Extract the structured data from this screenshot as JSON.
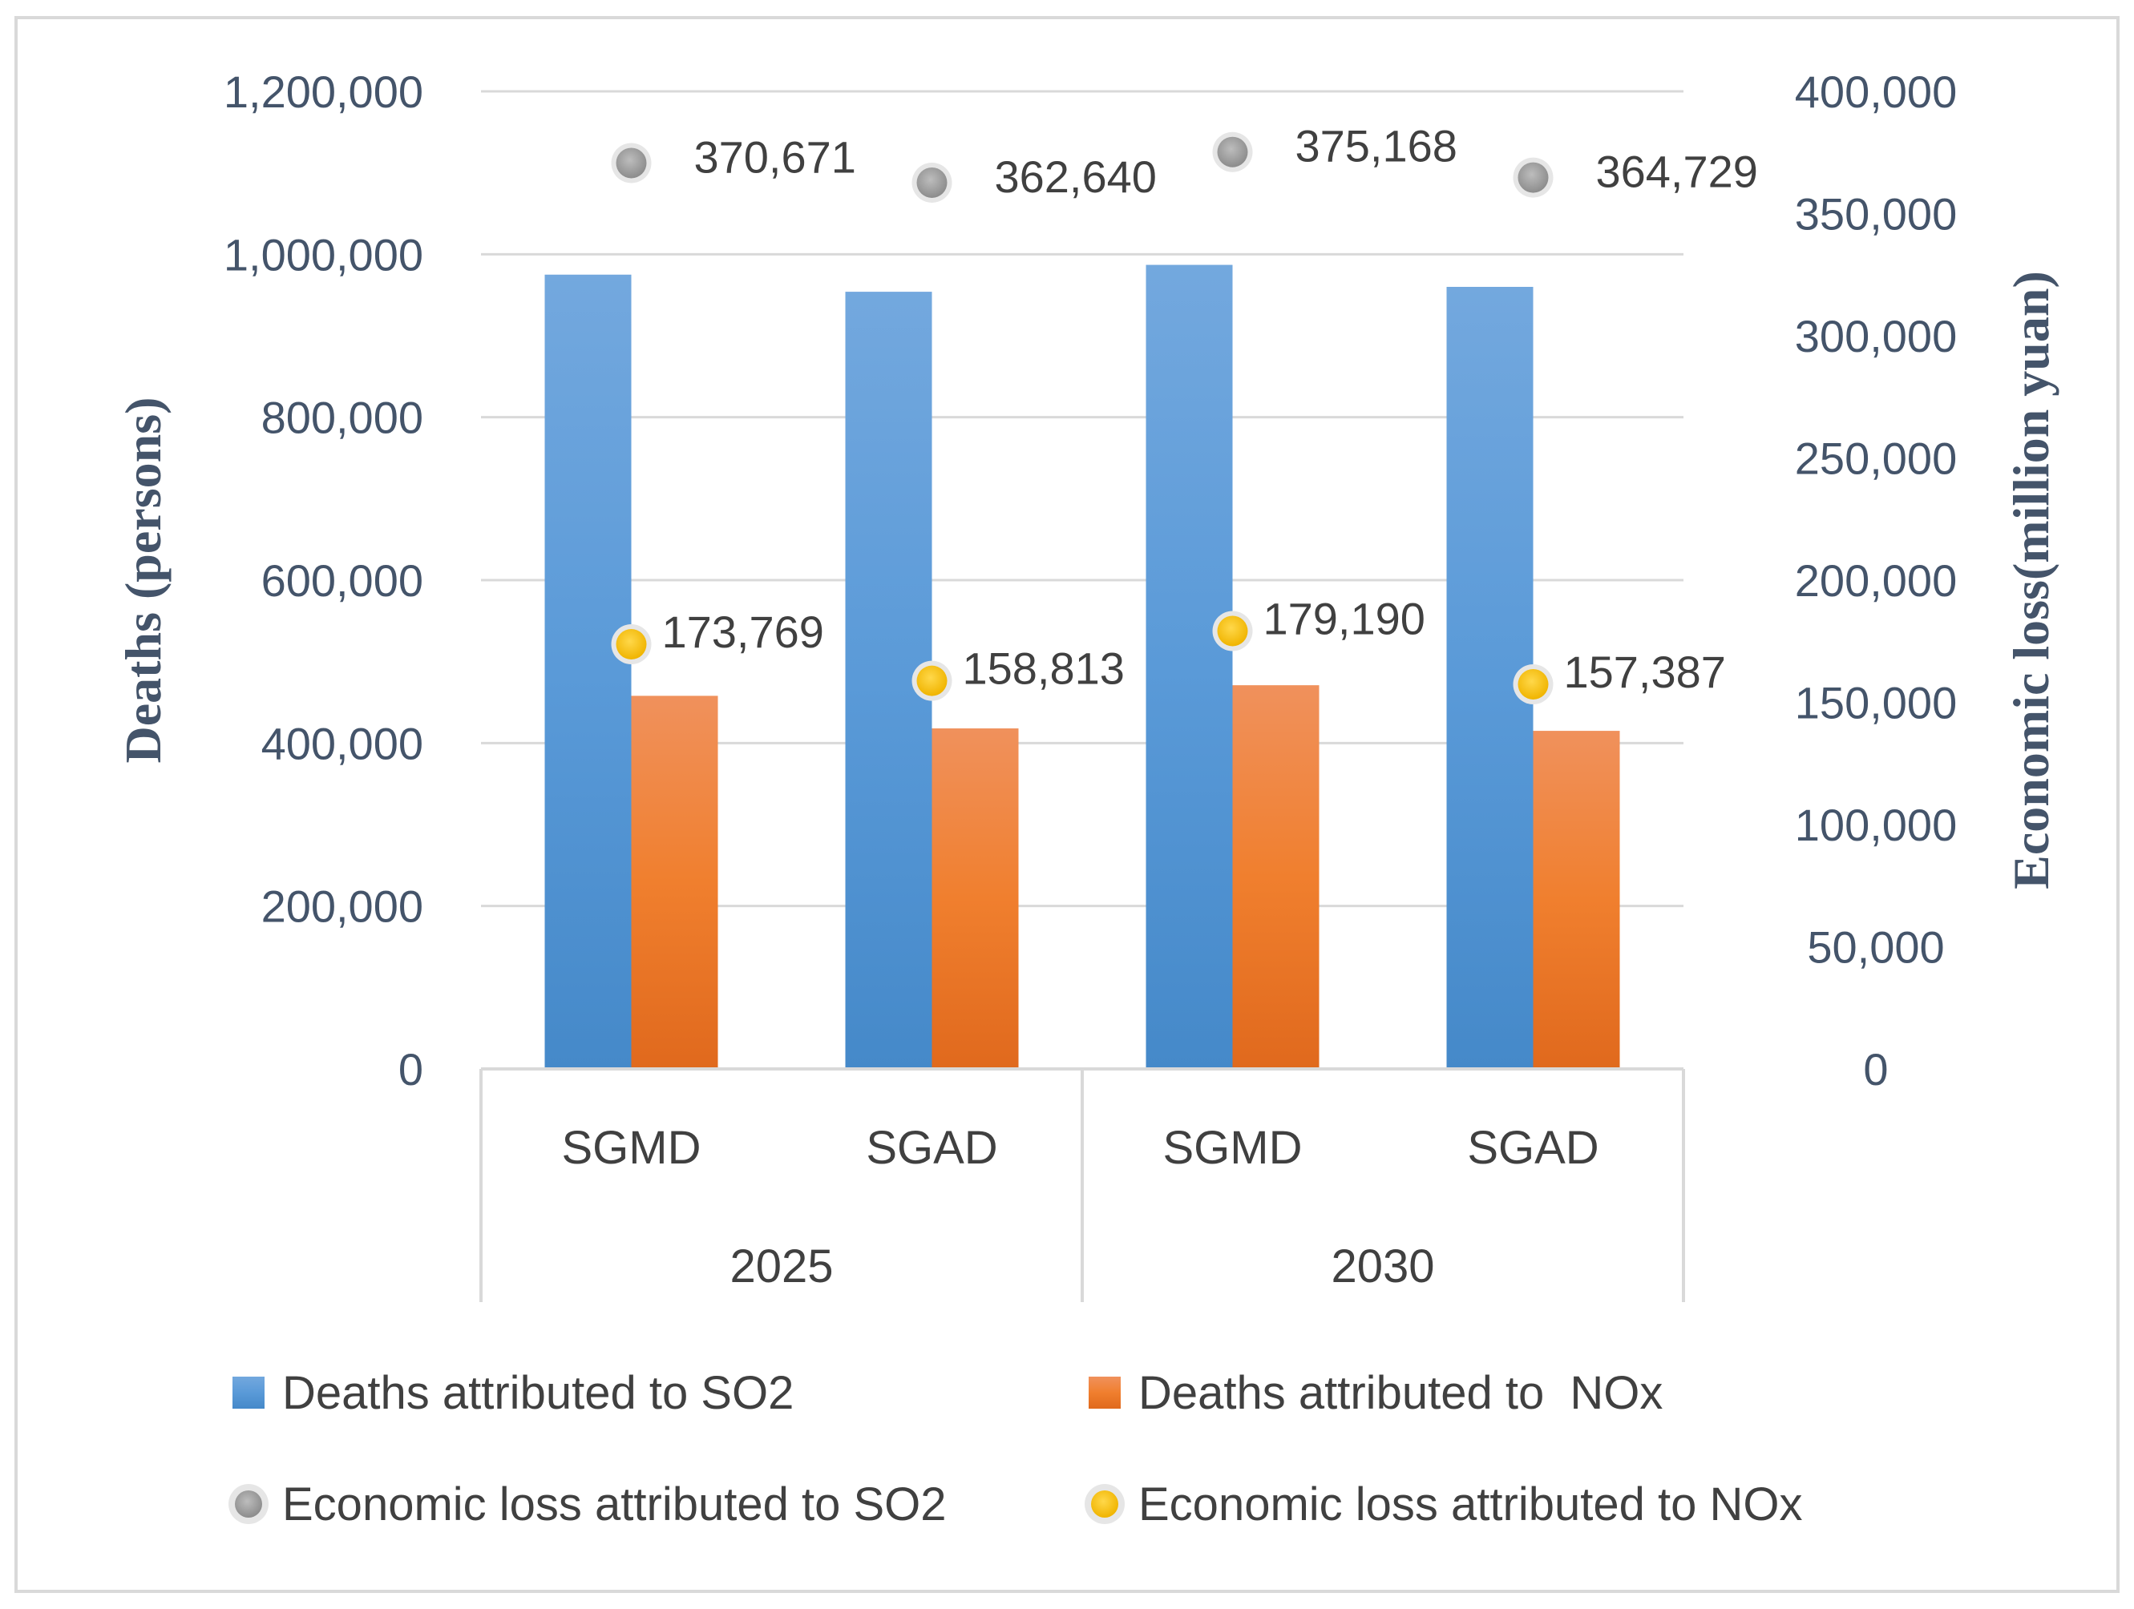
{
  "chart_data": {
    "type": "bar",
    "groups": [
      "2025",
      "2030"
    ],
    "categories": [
      "SGMD",
      "SGAD",
      "SGMD",
      "SGAD"
    ],
    "series": [
      {
        "name": "Deaths attributed to SO2",
        "kind": "bar",
        "axis": "left",
        "color": "#5b9bd5",
        "values": [
          975000,
          954000,
          987000,
          960000
        ]
      },
      {
        "name": "Deaths attributed to  NOx",
        "kind": "bar",
        "axis": "left",
        "color": "#ed7d31",
        "values": [
          458000,
          418000,
          471000,
          415000
        ]
      },
      {
        "name": "Economic loss attributed to SO2",
        "kind": "scatter",
        "axis": "right",
        "color": "#a5a5a5",
        "values": [
          370671,
          362640,
          375168,
          364729
        ],
        "labels": [
          "370,671",
          "362,640",
          "375,168",
          "364,729"
        ]
      },
      {
        "name": "Economic loss attributed to NOx",
        "kind": "scatter",
        "axis": "right",
        "color": "#ffc000",
        "values": [
          173769,
          158813,
          179190,
          157387
        ],
        "labels": [
          "173,769",
          "158,813",
          "179,190",
          "157,387"
        ]
      }
    ],
    "ylabel": "Deaths (persons)",
    "y2label": "Economic loss(million yuan)",
    "ylim": [
      0,
      1200000
    ],
    "y2lim": [
      0,
      400000
    ],
    "yticks": [
      "0",
      "200,000",
      "400,000",
      "600,000",
      "800,000",
      "1,000,000",
      "1,200,000"
    ],
    "y2ticks": [
      "0",
      "50,000",
      "100,000",
      "150,000",
      "200,000",
      "250,000",
      "300,000",
      "350,000",
      "400,000"
    ],
    "grid": true,
    "legend_position": "bottom"
  }
}
